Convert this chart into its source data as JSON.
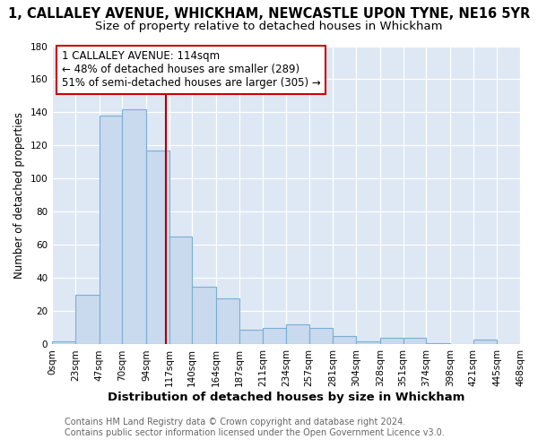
{
  "title": "1, CALLALEY AVENUE, WHICKHAM, NEWCASTLE UPON TYNE, NE16 5YR",
  "subtitle": "Size of property relative to detached houses in Whickham",
  "xlabel": "Distribution of detached houses by size in Whickham",
  "ylabel": "Number of detached properties",
  "bin_edges": [
    0,
    23,
    47,
    70,
    94,
    117,
    140,
    164,
    187,
    211,
    234,
    257,
    281,
    304,
    328,
    351,
    374,
    398,
    421,
    445,
    468
  ],
  "bar_heights": [
    2,
    30,
    138,
    142,
    117,
    65,
    35,
    28,
    9,
    10,
    12,
    10,
    5,
    2,
    4,
    4,
    1,
    0,
    3,
    0
  ],
  "bar_color": "#c9d9ee",
  "bar_edge_color": "#7aafd4",
  "property_value": 114,
  "vline_color": "#aa0000",
  "annotation_title": "1 CALLALEY AVENUE: 114sqm",
  "annotation_line1": "← 48% of detached houses are smaller (289)",
  "annotation_line2": "51% of semi-detached houses are larger (305) →",
  "annotation_box_edge_color": "#cc0000",
  "ylim": [
    0,
    180
  ],
  "yticks": [
    0,
    20,
    40,
    60,
    80,
    100,
    120,
    140,
    160,
    180
  ],
  "tick_labels": [
    "0sqm",
    "23sqm",
    "47sqm",
    "70sqm",
    "94sqm",
    "117sqm",
    "140sqm",
    "164sqm",
    "187sqm",
    "211sqm",
    "234sqm",
    "257sqm",
    "281sqm",
    "304sqm",
    "328sqm",
    "351sqm",
    "374sqm",
    "398sqm",
    "421sqm",
    "445sqm",
    "468sqm"
  ],
  "footer_line1": "Contains HM Land Registry data © Crown copyright and database right 2024.",
  "footer_line2": "Contains public sector information licensed under the Open Government Licence v3.0.",
  "bg_color": "#ffffff",
  "plot_bg_color": "#dde8f4",
  "grid_color": "#ffffff",
  "title_fontsize": 10.5,
  "subtitle_fontsize": 9.5,
  "xlabel_fontsize": 9.5,
  "ylabel_fontsize": 8.5,
  "tick_fontsize": 7.5,
  "footer_fontsize": 7.0,
  "annot_fontsize": 8.5
}
